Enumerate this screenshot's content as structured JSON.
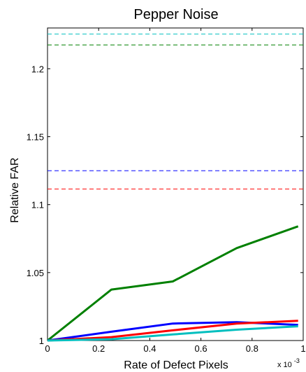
{
  "chart_data": {
    "type": "line",
    "title": "Pepper Noise",
    "xlabel": "Rate of Defect Pixels",
    "ylabel": "Relative FAR",
    "x_multiplier_label": "x 10",
    "x_multiplier_exponent": "-3",
    "xlim": [
      0,
      1
    ],
    "ylim": [
      1,
      1.23
    ],
    "x_ticks": [
      0,
      0.2,
      0.4,
      0.6,
      0.8,
      1
    ],
    "x_tick_labels": [
      "0",
      "0.2",
      "0.4",
      "0.6",
      "0.8",
      "1"
    ],
    "y_ticks": [
      1,
      1.05,
      1.1,
      1.15,
      1.2
    ],
    "y_tick_labels": [
      "1",
      "1.05",
      "1.1",
      "1.15",
      "1.2"
    ],
    "grid": false,
    "legend": "none",
    "series": [
      {
        "color": "#008000",
        "style": "solid",
        "x": [
          0,
          0.25,
          0.49,
          0.74,
          0.98
        ],
        "y": [
          1.0,
          1.0375,
          1.0435,
          1.068,
          1.084
        ]
      },
      {
        "color": "#0000ff",
        "style": "solid",
        "x": [
          0,
          0.25,
          0.49,
          0.74,
          0.98
        ],
        "y": [
          1.0,
          1.0065,
          1.0125,
          1.0135,
          1.0115
        ]
      },
      {
        "color": "#ff0000",
        "style": "solid",
        "x": [
          0,
          0.25,
          0.49,
          0.74,
          0.98
        ],
        "y": [
          1.0,
          1.0025,
          1.0075,
          1.0125,
          1.0145
        ]
      },
      {
        "color": "#00bfbf",
        "style": "solid",
        "x": [
          0,
          0.25,
          0.49,
          0.74,
          0.98
        ],
        "y": [
          1.0,
          1.001,
          1.0045,
          1.008,
          1.0105
        ]
      },
      {
        "color": "#00bfbf",
        "style": "dashed",
        "x": [
          0,
          1
        ],
        "y": [
          1.2255,
          1.2255
        ]
      },
      {
        "color": "#008000",
        "style": "dashed",
        "x": [
          0,
          1
        ],
        "y": [
          1.2175,
          1.2175
        ]
      },
      {
        "color": "#0000ff",
        "style": "dashed",
        "x": [
          0,
          1
        ],
        "y": [
          1.125,
          1.125
        ]
      },
      {
        "color": "#ff0000",
        "style": "dashed",
        "x": [
          0,
          1
        ],
        "y": [
          1.1115,
          1.1115
        ]
      }
    ]
  }
}
